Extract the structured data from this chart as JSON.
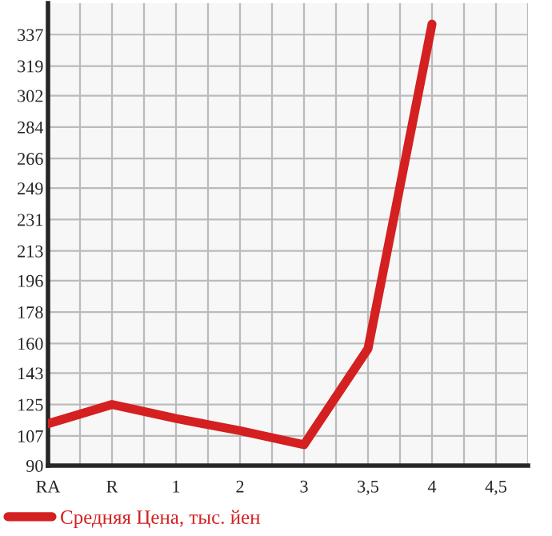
{
  "chart_data": {
    "type": "line",
    "categories": [
      "RA",
      "R",
      "1",
      "2",
      "3",
      "3,5",
      "4",
      "4,5"
    ],
    "series": [
      {
        "name": "Средняя Цена, тыс. йен",
        "color": "#d42020",
        "values": [
          114,
          125,
          117,
          110,
          102,
          157,
          343,
          null
        ]
      }
    ],
    "ylim": [
      90,
      355
    ],
    "yticks": [
      90,
      107,
      125,
      143,
      160,
      178,
      196,
      213,
      231,
      249,
      266,
      284,
      302,
      319,
      337
    ],
    "grid": true,
    "legend": "bottom left",
    "marker": "none",
    "line_style": "solid"
  }
}
